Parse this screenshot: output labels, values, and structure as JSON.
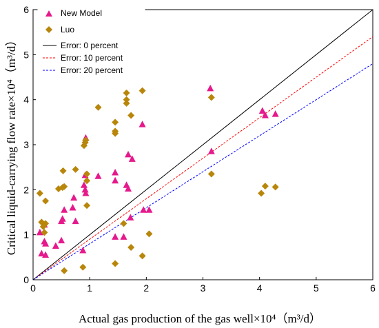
{
  "chart_data": {
    "type": "scatter",
    "xlabel": "Actual gas production of the gas well×10⁴（m³/d）",
    "ylabel": "Critical liquid-carrying flow rate×10⁴（m³/d）",
    "xlim": [
      0,
      6
    ],
    "ylim": [
      0,
      6
    ],
    "x_ticks": [
      "0",
      "1",
      "2",
      "3",
      "4",
      "5",
      "6"
    ],
    "y_ticks": [
      "0",
      "1",
      "2",
      "3",
      "4",
      "5",
      "6"
    ],
    "grid": false,
    "legend_position": "top-left",
    "series": [
      {
        "name": "New Model",
        "marker": "triangle",
        "color": "#e6198c",
        "points": [
          [
            0.12,
            1.05
          ],
          [
            0.15,
            0.58
          ],
          [
            0.2,
            0.85
          ],
          [
            0.22,
            0.8
          ],
          [
            0.22,
            0.55
          ],
          [
            0.2,
            1.22
          ],
          [
            0.4,
            0.75
          ],
          [
            0.5,
            0.87
          ],
          [
            0.5,
            1.3
          ],
          [
            0.52,
            1.35
          ],
          [
            0.55,
            1.55
          ],
          [
            0.7,
            1.6
          ],
          [
            0.72,
            1.82
          ],
          [
            0.75,
            1.3
          ],
          [
            0.88,
            0.65
          ],
          [
            0.9,
            2.1
          ],
          [
            0.92,
            2.32
          ],
          [
            0.93,
            1.92
          ],
          [
            0.92,
            2.0
          ],
          [
            0.93,
            3.15
          ],
          [
            1.15,
            2.3
          ],
          [
            1.45,
            2.2
          ],
          [
            1.45,
            2.38
          ],
          [
            1.45,
            0.95
          ],
          [
            1.6,
            0.95
          ],
          [
            1.65,
            2.1
          ],
          [
            1.68,
            2.02
          ],
          [
            1.68,
            2.78
          ],
          [
            1.75,
            2.68
          ],
          [
            1.72,
            1.38
          ],
          [
            1.93,
            3.45
          ],
          [
            1.95,
            1.55
          ],
          [
            2.05,
            1.55
          ],
          [
            3.13,
            4.25
          ],
          [
            3.15,
            2.85
          ],
          [
            4.05,
            3.75
          ],
          [
            4.1,
            3.65
          ],
          [
            4.28,
            3.68
          ]
        ]
      },
      {
        "name": "Luo",
        "marker": "diamond",
        "color": "#b8860b",
        "points": [
          [
            0.12,
            1.92
          ],
          [
            0.15,
            1.28
          ],
          [
            0.18,
            1.18
          ],
          [
            0.2,
            1.05
          ],
          [
            0.22,
            1.25
          ],
          [
            0.22,
            1.75
          ],
          [
            0.45,
            2.02
          ],
          [
            0.52,
            2.05
          ],
          [
            0.53,
            2.42
          ],
          [
            0.55,
            0.2
          ],
          [
            0.55,
            2.07
          ],
          [
            0.75,
            2.45
          ],
          [
            0.88,
            0.28
          ],
          [
            0.9,
            2.98
          ],
          [
            0.92,
            3.05
          ],
          [
            0.93,
            3.1
          ],
          [
            0.95,
            2.2
          ],
          [
            0.95,
            2.35
          ],
          [
            0.95,
            1.65
          ],
          [
            1.15,
            3.83
          ],
          [
            1.45,
            3.5
          ],
          [
            1.45,
            3.3
          ],
          [
            1.45,
            3.25
          ],
          [
            1.45,
            0.36
          ],
          [
            1.6,
            1.25
          ],
          [
            1.65,
            4.15
          ],
          [
            1.65,
            4.0
          ],
          [
            1.65,
            3.92
          ],
          [
            1.73,
            3.65
          ],
          [
            1.73,
            0.72
          ],
          [
            1.93,
            4.2
          ],
          [
            1.93,
            0.53
          ],
          [
            2.05,
            1.02
          ],
          [
            3.15,
            4.05
          ],
          [
            3.15,
            2.35
          ],
          [
            4.03,
            1.92
          ],
          [
            4.1,
            2.08
          ],
          [
            4.28,
            2.06
          ]
        ]
      }
    ],
    "reference_lines": [
      {
        "name": "Error: 0 percent",
        "slope": 1.0,
        "color": "#000000",
        "style": "solid"
      },
      {
        "name": "Error: 10 percent",
        "slope": 0.9,
        "color": "#ff0000",
        "style": "dashed"
      },
      {
        "name": "Error: 20 percent",
        "slope": 0.8,
        "color": "#0000ff",
        "style": "dashed"
      }
    ]
  }
}
